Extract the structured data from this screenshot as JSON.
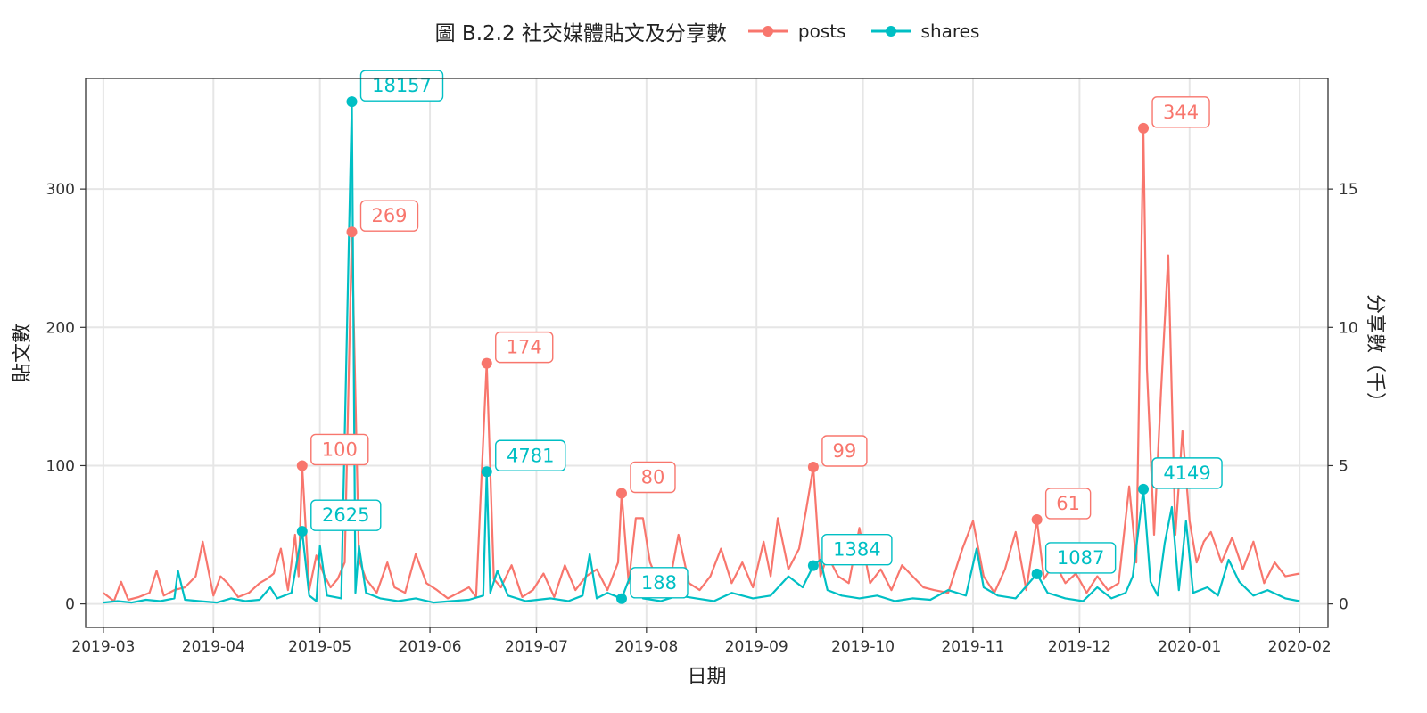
{
  "chart_data": {
    "type": "line",
    "title": "圖 B.2.2 社交媒體貼文及分享數",
    "xlabel": "日期",
    "ylabel": "貼文數",
    "y2label": "分享數（千）",
    "xlim": [
      "2019-02-24",
      "2020-02-09"
    ],
    "ylim": [
      -17,
      380
    ],
    "y2lim": [
      -0.85,
      19.0
    ],
    "x_ticks": [
      "2019-03",
      "2019-04",
      "2019-05",
      "2019-06",
      "2019-07",
      "2019-08",
      "2019-09",
      "2019-10",
      "2019-11",
      "2019-12",
      "2020-01",
      "2020-02"
    ],
    "y_ticks": [
      0,
      100,
      200,
      300
    ],
    "y2_ticks": [
      0,
      5,
      10,
      15
    ],
    "grid": true,
    "legend_position": "top",
    "series": [
      {
        "name": "posts",
        "color": "#F8766D",
        "axis": "left",
        "points": [
          [
            "2019-03-01",
            8
          ],
          [
            "2019-03-04",
            2
          ],
          [
            "2019-03-06",
            16
          ],
          [
            "2019-03-08",
            3
          ],
          [
            "2019-03-11",
            5
          ],
          [
            "2019-03-14",
            8
          ],
          [
            "2019-03-16",
            24
          ],
          [
            "2019-03-18",
            6
          ],
          [
            "2019-03-21",
            10
          ],
          [
            "2019-03-24",
            12
          ],
          [
            "2019-03-27",
            20
          ],
          [
            "2019-03-29",
            45
          ],
          [
            "2019-04-01",
            6
          ],
          [
            "2019-04-03",
            20
          ],
          [
            "2019-04-05",
            15
          ],
          [
            "2019-04-08",
            5
          ],
          [
            "2019-04-11",
            8
          ],
          [
            "2019-04-14",
            15
          ],
          [
            "2019-04-16",
            18
          ],
          [
            "2019-04-18",
            22
          ],
          [
            "2019-04-20",
            40
          ],
          [
            "2019-04-22",
            10
          ],
          [
            "2019-04-24",
            50
          ],
          [
            "2019-04-25",
            20
          ],
          [
            "2019-04-26",
            100
          ],
          [
            "2019-04-28",
            10
          ],
          [
            "2019-04-30",
            35
          ],
          [
            "2019-05-02",
            22
          ],
          [
            "2019-05-04",
            12
          ],
          [
            "2019-05-06",
            18
          ],
          [
            "2019-05-08",
            30
          ],
          [
            "2019-05-10",
            269
          ],
          [
            "2019-05-12",
            32
          ],
          [
            "2019-05-14",
            18
          ],
          [
            "2019-05-17",
            8
          ],
          [
            "2019-05-20",
            30
          ],
          [
            "2019-05-22",
            12
          ],
          [
            "2019-05-25",
            8
          ],
          [
            "2019-05-28",
            36
          ],
          [
            "2019-05-31",
            15
          ],
          [
            "2019-06-03",
            10
          ],
          [
            "2019-06-06",
            4
          ],
          [
            "2019-06-09",
            8
          ],
          [
            "2019-06-12",
            12
          ],
          [
            "2019-06-14",
            5
          ],
          [
            "2019-06-17",
            174
          ],
          [
            "2019-06-19",
            18
          ],
          [
            "2019-06-21",
            12
          ],
          [
            "2019-06-24",
            28
          ],
          [
            "2019-06-27",
            5
          ],
          [
            "2019-06-30",
            10
          ],
          [
            "2019-07-03",
            22
          ],
          [
            "2019-07-06",
            5
          ],
          [
            "2019-07-09",
            28
          ],
          [
            "2019-07-12",
            10
          ],
          [
            "2019-07-15",
            20
          ],
          [
            "2019-07-18",
            25
          ],
          [
            "2019-07-21",
            10
          ],
          [
            "2019-07-24",
            30
          ],
          [
            "2019-07-25",
            80
          ],
          [
            "2019-07-27",
            15
          ],
          [
            "2019-07-29",
            62
          ],
          [
            "2019-07-31",
            62
          ],
          [
            "2019-08-02",
            30
          ],
          [
            "2019-08-04",
            18
          ],
          [
            "2019-08-07",
            8
          ],
          [
            "2019-08-10",
            50
          ],
          [
            "2019-08-13",
            15
          ],
          [
            "2019-08-16",
            10
          ],
          [
            "2019-08-19",
            20
          ],
          [
            "2019-08-22",
            40
          ],
          [
            "2019-08-25",
            15
          ],
          [
            "2019-08-28",
            30
          ],
          [
            "2019-08-31",
            12
          ],
          [
            "2019-09-03",
            45
          ],
          [
            "2019-09-05",
            20
          ],
          [
            "2019-09-07",
            62
          ],
          [
            "2019-09-10",
            25
          ],
          [
            "2019-09-13",
            40
          ],
          [
            "2019-09-15",
            68
          ],
          [
            "2019-09-17",
            99
          ],
          [
            "2019-09-19",
            20
          ],
          [
            "2019-09-21",
            35
          ],
          [
            "2019-09-24",
            20
          ],
          [
            "2019-09-27",
            15
          ],
          [
            "2019-09-30",
            55
          ],
          [
            "2019-10-03",
            15
          ],
          [
            "2019-10-06",
            25
          ],
          [
            "2019-10-09",
            10
          ],
          [
            "2019-10-12",
            28
          ],
          [
            "2019-10-15",
            20
          ],
          [
            "2019-10-18",
            12
          ],
          [
            "2019-10-21",
            10
          ],
          [
            "2019-10-25",
            8
          ],
          [
            "2019-10-29",
            40
          ],
          [
            "2019-11-01",
            60
          ],
          [
            "2019-11-04",
            20
          ],
          [
            "2019-11-07",
            8
          ],
          [
            "2019-11-10",
            25
          ],
          [
            "2019-11-13",
            52
          ],
          [
            "2019-11-16",
            10
          ],
          [
            "2019-11-19",
            61
          ],
          [
            "2019-11-21",
            18
          ],
          [
            "2019-11-24",
            30
          ],
          [
            "2019-11-27",
            15
          ],
          [
            "2019-11-30",
            22
          ],
          [
            "2019-12-03",
            8
          ],
          [
            "2019-12-06",
            20
          ],
          [
            "2019-12-09",
            10
          ],
          [
            "2019-12-12",
            15
          ],
          [
            "2019-12-15",
            85
          ],
          [
            "2019-12-17",
            30
          ],
          [
            "2019-12-19",
            344
          ],
          [
            "2019-12-20",
            170
          ],
          [
            "2019-12-22",
            50
          ],
          [
            "2019-12-24",
            155
          ],
          [
            "2019-12-26",
            252
          ],
          [
            "2019-12-28",
            50
          ],
          [
            "2019-12-30",
            125
          ],
          [
            "2020-01-01",
            60
          ],
          [
            "2020-01-03",
            30
          ],
          [
            "2020-01-05",
            45
          ],
          [
            "2020-01-07",
            52
          ],
          [
            "2020-01-10",
            30
          ],
          [
            "2020-01-13",
            48
          ],
          [
            "2020-01-16",
            25
          ],
          [
            "2020-01-19",
            45
          ],
          [
            "2020-01-22",
            15
          ],
          [
            "2020-01-25",
            30
          ],
          [
            "2020-01-28",
            20
          ],
          [
            "2020-02-01",
            22
          ]
        ]
      },
      {
        "name": "shares",
        "color": "#00BFC4",
        "axis": "right",
        "points": [
          [
            "2019-03-01",
            0.05
          ],
          [
            "2019-03-05",
            0.1
          ],
          [
            "2019-03-09",
            0.05
          ],
          [
            "2019-03-13",
            0.15
          ],
          [
            "2019-03-17",
            0.1
          ],
          [
            "2019-03-21",
            0.2
          ],
          [
            "2019-03-22",
            1.2
          ],
          [
            "2019-03-24",
            0.15
          ],
          [
            "2019-03-28",
            0.1
          ],
          [
            "2019-04-02",
            0.05
          ],
          [
            "2019-04-06",
            0.2
          ],
          [
            "2019-04-10",
            0.1
          ],
          [
            "2019-04-14",
            0.15
          ],
          [
            "2019-04-17",
            0.6
          ],
          [
            "2019-04-19",
            0.2
          ],
          [
            "2019-04-23",
            0.4
          ],
          [
            "2019-04-26",
            2.625
          ],
          [
            "2019-04-28",
            0.3
          ],
          [
            "2019-04-30",
            0.1
          ],
          [
            "2019-05-01",
            2.1
          ],
          [
            "2019-05-03",
            0.3
          ],
          [
            "2019-05-07",
            0.2
          ],
          [
            "2019-05-10",
            18.157
          ],
          [
            "2019-05-11",
            0.4
          ],
          [
            "2019-05-12",
            2.1
          ],
          [
            "2019-05-14",
            0.4
          ],
          [
            "2019-05-18",
            0.2
          ],
          [
            "2019-05-23",
            0.1
          ],
          [
            "2019-05-28",
            0.2
          ],
          [
            "2019-06-02",
            0.05
          ],
          [
            "2019-06-07",
            0.1
          ],
          [
            "2019-06-12",
            0.15
          ],
          [
            "2019-06-16",
            0.3
          ],
          [
            "2019-06-17",
            4.781
          ],
          [
            "2019-06-18",
            0.4
          ],
          [
            "2019-06-20",
            1.2
          ],
          [
            "2019-06-23",
            0.3
          ],
          [
            "2019-06-28",
            0.1
          ],
          [
            "2019-07-05",
            0.2
          ],
          [
            "2019-07-10",
            0.1
          ],
          [
            "2019-07-14",
            0.3
          ],
          [
            "2019-07-16",
            1.8
          ],
          [
            "2019-07-18",
            0.2
          ],
          [
            "2019-07-21",
            0.4
          ],
          [
            "2019-07-25",
            0.188
          ],
          [
            "2019-07-28",
            1.2
          ],
          [
            "2019-07-31",
            0.2
          ],
          [
            "2019-08-05",
            0.1
          ],
          [
            "2019-08-10",
            0.3
          ],
          [
            "2019-08-15",
            0.2
          ],
          [
            "2019-08-20",
            0.1
          ],
          [
            "2019-08-25",
            0.4
          ],
          [
            "2019-08-31",
            0.2
          ],
          [
            "2019-09-05",
            0.3
          ],
          [
            "2019-09-10",
            1.0
          ],
          [
            "2019-09-14",
            0.6
          ],
          [
            "2019-09-17",
            1.384
          ],
          [
            "2019-09-19",
            1.6
          ],
          [
            "2019-09-21",
            0.5
          ],
          [
            "2019-09-25",
            0.3
          ],
          [
            "2019-09-30",
            0.2
          ],
          [
            "2019-10-05",
            0.3
          ],
          [
            "2019-10-10",
            0.1
          ],
          [
            "2019-10-15",
            0.2
          ],
          [
            "2019-10-20",
            0.15
          ],
          [
            "2019-10-25",
            0.5
          ],
          [
            "2019-10-30",
            0.3
          ],
          [
            "2019-11-02",
            2.0
          ],
          [
            "2019-11-04",
            0.6
          ],
          [
            "2019-11-08",
            0.3
          ],
          [
            "2019-11-13",
            0.2
          ],
          [
            "2019-11-19",
            1.087
          ],
          [
            "2019-11-22",
            0.4
          ],
          [
            "2019-11-27",
            0.2
          ],
          [
            "2019-12-02",
            0.1
          ],
          [
            "2019-12-06",
            0.6
          ],
          [
            "2019-12-10",
            0.2
          ],
          [
            "2019-12-14",
            0.4
          ],
          [
            "2019-12-16",
            1.0
          ],
          [
            "2019-12-19",
            4.149
          ],
          [
            "2019-12-21",
            0.8
          ],
          [
            "2019-12-23",
            0.3
          ],
          [
            "2019-12-25",
            2.2
          ],
          [
            "2019-12-27",
            3.5
          ],
          [
            "2019-12-29",
            0.5
          ],
          [
            "2019-12-31",
            3.0
          ],
          [
            "2020-01-02",
            0.4
          ],
          [
            "2020-01-06",
            0.6
          ],
          [
            "2020-01-09",
            0.3
          ],
          [
            "2020-01-12",
            1.6
          ],
          [
            "2020-01-15",
            0.8
          ],
          [
            "2020-01-19",
            0.3
          ],
          [
            "2020-01-23",
            0.5
          ],
          [
            "2020-01-28",
            0.2
          ],
          [
            "2020-02-01",
            0.1
          ]
        ]
      }
    ],
    "annotations": [
      {
        "series": "posts",
        "date": "2019-04-26",
        "value": 100,
        "label": "100"
      },
      {
        "series": "posts",
        "date": "2019-05-10",
        "value": 269,
        "label": "269"
      },
      {
        "series": "posts",
        "date": "2019-06-17",
        "value": 174,
        "label": "174"
      },
      {
        "series": "posts",
        "date": "2019-07-25",
        "value": 80,
        "label": "80"
      },
      {
        "series": "posts",
        "date": "2019-09-17",
        "value": 99,
        "label": "99"
      },
      {
        "series": "posts",
        "date": "2019-11-19",
        "value": 61,
        "label": "61"
      },
      {
        "series": "posts",
        "date": "2019-12-19",
        "value": 344,
        "label": "344"
      },
      {
        "series": "shares",
        "date": "2019-04-26",
        "value": 2.625,
        "label": "2625"
      },
      {
        "series": "shares",
        "date": "2019-05-10",
        "value": 18.157,
        "label": "18157"
      },
      {
        "series": "shares",
        "date": "2019-06-17",
        "value": 4.781,
        "label": "4781"
      },
      {
        "series": "shares",
        "date": "2019-07-25",
        "value": 0.188,
        "label": "188"
      },
      {
        "series": "shares",
        "date": "2019-09-17",
        "value": 1.384,
        "label": "1384"
      },
      {
        "series": "shares",
        "date": "2019-11-19",
        "value": 1.087,
        "label": "1087"
      },
      {
        "series": "shares",
        "date": "2019-12-19",
        "value": 4.149,
        "label": "4149"
      }
    ]
  }
}
